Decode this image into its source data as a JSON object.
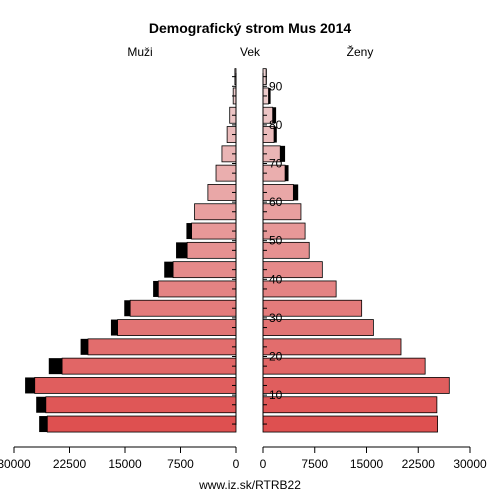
{
  "chart_data": {
    "type": "bar",
    "title": "Demografický strom Mus 2014",
    "left_label": "Muži",
    "center_label": "Vek",
    "right_label": "Ženy",
    "footer": "www.iz.sk/RTRB22",
    "xlim": [
      0,
      30000
    ],
    "x_ticks": [
      0,
      7500,
      15000,
      22500,
      30000
    ],
    "x_tick_labels": [
      "0",
      "7500",
      "15000",
      "22500",
      "30000"
    ],
    "age_ticks": [
      10,
      20,
      30,
      40,
      50,
      60,
      70,
      80,
      90
    ],
    "age_groups": [
      "0-4",
      "5-9",
      "10-14",
      "15-19",
      "20-24",
      "25-29",
      "30-34",
      "35-39",
      "40-44",
      "45-49",
      "50-54",
      "55-59",
      "60-64",
      "65-69",
      "70-74",
      "75-79",
      "80-84",
      "85-89",
      "90-94"
    ],
    "series": [
      {
        "name": "Muži",
        "values": [
          25500,
          25700,
          27200,
          23500,
          20000,
          16000,
          14300,
          10500,
          8500,
          6600,
          6000,
          5600,
          3800,
          2700,
          1900,
          1200,
          850,
          380,
          150
        ],
        "excess": [
          1100,
          1300,
          1300,
          1800,
          1000,
          900,
          800,
          700,
          1200,
          1500,
          700,
          0,
          0,
          0,
          0,
          0,
          0,
          0,
          0
        ]
      },
      {
        "name": "Ženy",
        "values": [
          25300,
          25200,
          27000,
          23500,
          20000,
          16000,
          14300,
          10600,
          8600,
          6700,
          6100,
          5500,
          4400,
          3200,
          2500,
          1600,
          1400,
          800,
          450
        ],
        "excess": [
          0,
          0,
          0,
          0,
          0,
          0,
          0,
          0,
          0,
          0,
          0,
          0,
          700,
          500,
          700,
          400,
          500,
          300,
          100
        ]
      }
    ]
  }
}
